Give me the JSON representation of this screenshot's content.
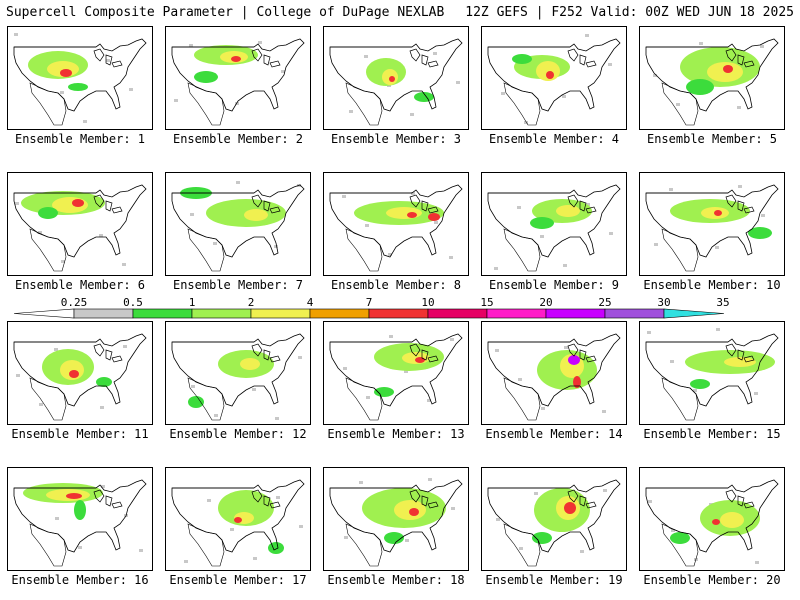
{
  "header": {
    "title_left": "Supercell Composite Parameter | College of DuPage NEXLAB",
    "title_right": "12Z GEFS | F252 Valid: 00Z WED JUN 18 2025"
  },
  "colorbar": {
    "labels": [
      "0.25",
      "0.5",
      "1",
      "2",
      "4",
      "7",
      "10",
      "15",
      "20",
      "25",
      "30",
      "35"
    ],
    "colors": [
      "#ffffff",
      "#c8c8c8",
      "#3cdc3c",
      "#a0f050",
      "#f0f050",
      "#f0a000",
      "#f03232",
      "#e60064",
      "#ff1cc8",
      "#c800ff",
      "#a050dc",
      "#30e0e0"
    ]
  },
  "panels": [
    {
      "caption": "Ensemble Member: 1"
    },
    {
      "caption": "Ensemble Member: 2"
    },
    {
      "caption": "Ensemble Member: 3"
    },
    {
      "caption": "Ensemble Member: 4"
    },
    {
      "caption": "Ensemble Member: 5"
    },
    {
      "caption": "Ensemble Member: 6"
    },
    {
      "caption": "Ensemble Member: 7"
    },
    {
      "caption": "Ensemble Member: 8"
    },
    {
      "caption": "Ensemble Member: 9"
    },
    {
      "caption": "Ensemble Member: 10"
    },
    {
      "caption": "Ensemble Member: 11"
    },
    {
      "caption": "Ensemble Member: 12"
    },
    {
      "caption": "Ensemble Member: 13"
    },
    {
      "caption": "Ensemble Member: 14"
    },
    {
      "caption": "Ensemble Member: 15"
    },
    {
      "caption": "Ensemble Member: 16"
    },
    {
      "caption": "Ensemble Member: 17"
    },
    {
      "caption": "Ensemble Member: 18"
    },
    {
      "caption": "Ensemble Member: 19"
    },
    {
      "caption": "Ensemble Member: 20"
    }
  ]
}
